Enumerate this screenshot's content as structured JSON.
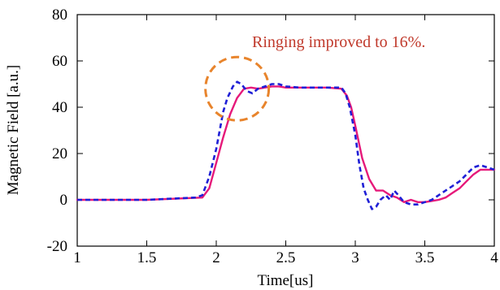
{
  "chart_data": {
    "type": "line",
    "xlabel": "Time[us]",
    "ylabel": "Magnetic Field [a.u.]",
    "xlim": [
      1,
      4
    ],
    "ylim": [
      -20,
      80
    ],
    "x_ticks": [
      1,
      1.5,
      2,
      2.5,
      3,
      3.5,
      4
    ],
    "x_tick_labels": [
      "1",
      "1.5",
      "2",
      "2.5",
      "3",
      "3.5",
      "4"
    ],
    "y_ticks": [
      -20,
      0,
      20,
      40,
      60,
      80
    ],
    "y_tick_labels": [
      "-20",
      "0",
      "20",
      "40",
      "60",
      "80"
    ],
    "grid": false,
    "annotation": {
      "text": "Ringing improved to 16%.",
      "color": "#c0392b",
      "circle_center": [
        2.15,
        48
      ],
      "circle_color": "#e8842c"
    },
    "series": [
      {
        "style": "dashed",
        "color": "#1f1fd6",
        "x": [
          1.0,
          1.5,
          1.85,
          1.9,
          1.95,
          2.0,
          2.05,
          2.08,
          2.12,
          2.15,
          2.18,
          2.22,
          2.26,
          2.3,
          2.35,
          2.4,
          2.45,
          2.5,
          2.6,
          2.7,
          2.8,
          2.9,
          2.93,
          2.96,
          3.0,
          3.03,
          3.06,
          3.09,
          3.12,
          3.15,
          3.18,
          3.22,
          3.25,
          3.28,
          3.31,
          3.35,
          3.4,
          3.45,
          3.5,
          3.55,
          3.6,
          3.65,
          3.7,
          3.75,
          3.8,
          3.85,
          3.9,
          3.95,
          4.0
        ],
        "y": [
          0,
          0,
          1,
          2,
          10,
          22,
          38,
          44,
          49,
          51,
          50,
          47,
          46,
          48,
          49,
          50,
          50,
          49,
          48.5,
          48.5,
          48.5,
          48.5,
          46,
          40,
          28,
          15,
          5,
          0,
          -4,
          -3,
          0,
          2,
          0,
          4,
          2,
          -1,
          -2,
          -2,
          -1,
          0,
          2,
          4,
          6,
          8,
          11,
          14,
          15,
          14,
          13
        ]
      },
      {
        "style": "solid",
        "color": "#e6197a",
        "x": [
          1.0,
          1.5,
          1.9,
          1.95,
          2.0,
          2.05,
          2.1,
          2.15,
          2.2,
          2.25,
          2.3,
          2.35,
          2.4,
          2.45,
          2.5,
          2.6,
          2.7,
          2.8,
          2.9,
          2.94,
          2.97,
          3.0,
          3.05,
          3.1,
          3.15,
          3.2,
          3.25,
          3.3,
          3.35,
          3.4,
          3.45,
          3.5,
          3.55,
          3.6,
          3.65,
          3.7,
          3.75,
          3.8,
          3.85,
          3.9,
          3.95,
          4.0
        ],
        "y": [
          0,
          0,
          1,
          5,
          16,
          27,
          37,
          44,
          48,
          48.5,
          48,
          48.5,
          49,
          49,
          48.5,
          48.5,
          48.5,
          48.5,
          48,
          45,
          40,
          32,
          18,
          9,
          4,
          4,
          2,
          1,
          -1,
          0,
          -1,
          -1,
          -0.5,
          0,
          1,
          3,
          5,
          8,
          11,
          13,
          13,
          13
        ]
      }
    ]
  }
}
